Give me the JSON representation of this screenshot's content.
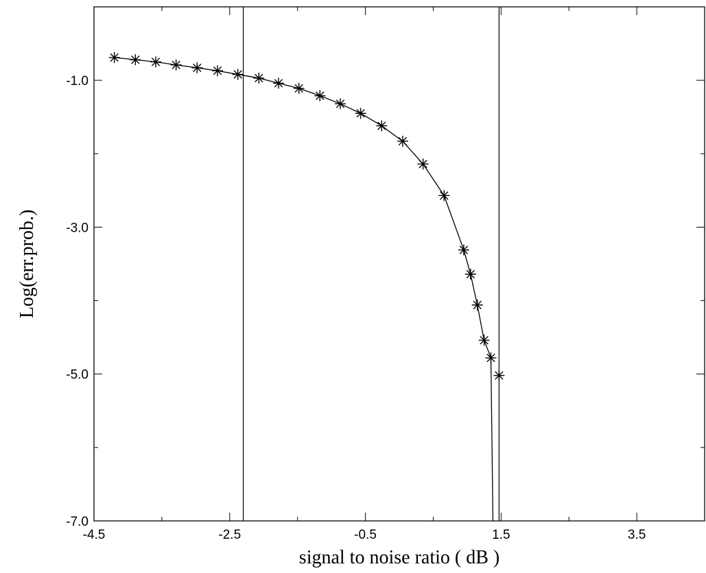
{
  "chart_data": {
    "type": "line",
    "xlabel": "signal to noise ratio ( dB )",
    "ylabel": "Log(err.prob.)",
    "xlim": [
      -4.5,
      4.5
    ],
    "ylim": [
      -7,
      0
    ],
    "xticks": [
      -4.5,
      -2.5,
      -0.5,
      1.5,
      3.5
    ],
    "xminorticks": [
      -3.5,
      -1.5,
      0.5,
      2.5
    ],
    "yticks": [
      {
        "value": -1,
        "label": "-1.0"
      },
      {
        "value": -3,
        "label": "-3.0"
      },
      {
        "value": -5,
        "label": "-5.0"
      },
      {
        "value": -7,
        "label": "-7.0"
      }
    ],
    "yminorticks": [
      -2,
      -4,
      -6
    ],
    "vlines": [
      -2.3,
      1.47
    ],
    "color": "#000000",
    "series": [
      {
        "style": "line",
        "x": [
          -4.2,
          -3.89,
          -3.59,
          -3.29,
          -2.98,
          -2.68,
          -2.38,
          -2.07,
          -1.78,
          -1.48,
          -1.17,
          -0.87,
          -0.57,
          -0.26,
          0.05,
          0.35,
          0.66,
          0.95,
          1.05,
          1.15,
          1.25,
          1.35,
          1.38
        ],
        "values": [
          -0.69,
          -0.72,
          -0.75,
          -0.79,
          -0.83,
          -0.87,
          -0.92,
          -0.97,
          -1.04,
          -1.11,
          -1.21,
          -1.32,
          -1.45,
          -1.62,
          -1.83,
          -2.14,
          -2.57,
          -3.31,
          -3.64,
          -4.06,
          -4.54,
          -4.78,
          -7.0
        ]
      },
      {
        "style": "asterisk",
        "x": [
          -4.2,
          -3.89,
          -3.59,
          -3.29,
          -2.98,
          -2.68,
          -2.38,
          -2.07,
          -1.78,
          -1.48,
          -1.17,
          -0.87,
          -0.57,
          -0.26,
          0.05,
          0.35,
          0.66,
          0.95,
          1.05,
          1.15,
          1.25,
          1.35,
          1.47
        ],
        "values": [
          -0.69,
          -0.72,
          -0.75,
          -0.79,
          -0.83,
          -0.87,
          -0.92,
          -0.97,
          -1.04,
          -1.11,
          -1.21,
          -1.32,
          -1.45,
          -1.62,
          -1.83,
          -2.14,
          -2.57,
          -3.31,
          -3.64,
          -4.06,
          -4.54,
          -4.78,
          -5.02
        ]
      }
    ]
  }
}
